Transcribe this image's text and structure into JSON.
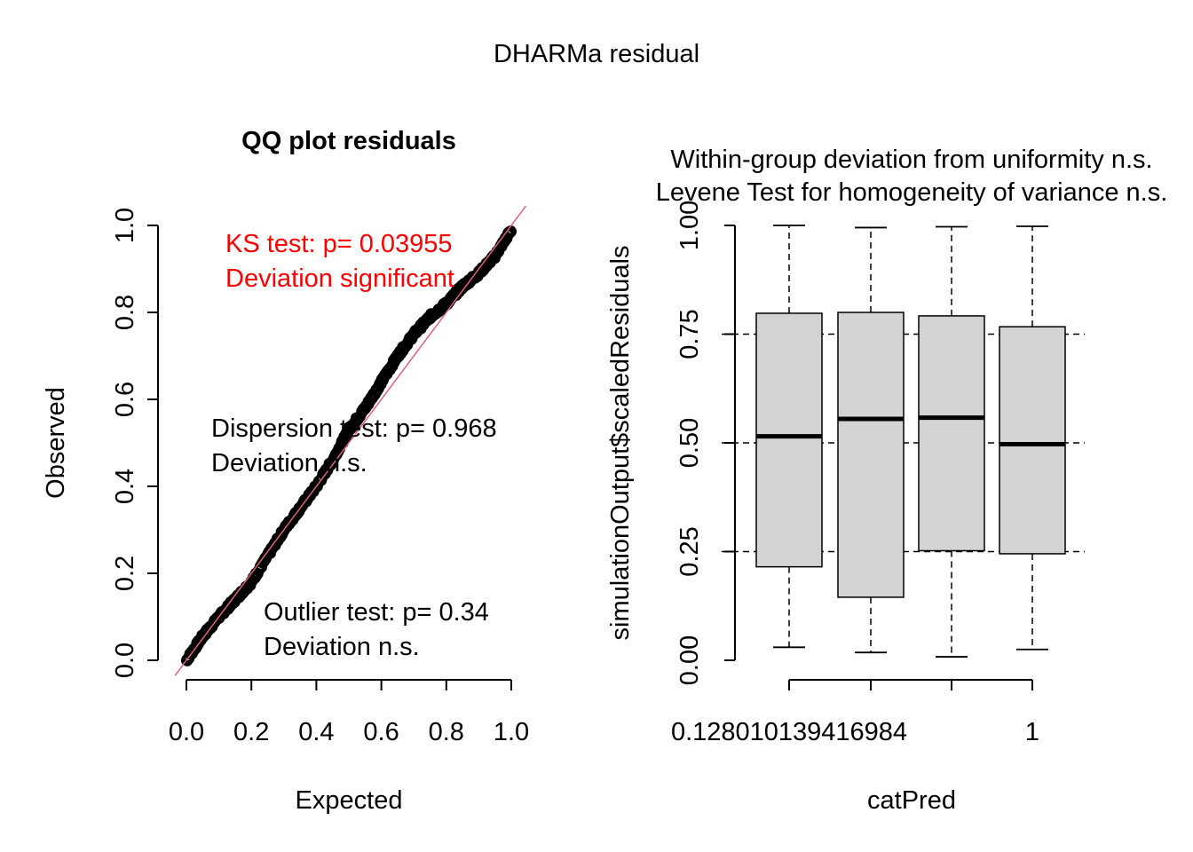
{
  "figure": {
    "title": "DHARMa residual"
  },
  "chart_data": [
    {
      "type": "scatter",
      "title": "QQ plot residuals",
      "xlabel": "Expected",
      "ylabel": "Observed",
      "xlim": [
        0,
        1
      ],
      "ylim": [
        0,
        1
      ],
      "x_ticks": [
        "0.0",
        "0.2",
        "0.4",
        "0.6",
        "0.8",
        "1.0"
      ],
      "y_ticks": [
        "0.0",
        "0.2",
        "0.4",
        "0.6",
        "0.8",
        "1.0"
      ],
      "reference_line": {
        "from": [
          0,
          0
        ],
        "to": [
          1,
          1
        ],
        "color": "#e0607a"
      },
      "point_color": "#000000",
      "qq_curve": [
        [
          0.0,
          0.0
        ],
        [
          0.05,
          0.055
        ],
        [
          0.1,
          0.1
        ],
        [
          0.15,
          0.14
        ],
        [
          0.2,
          0.18
        ],
        [
          0.25,
          0.24
        ],
        [
          0.3,
          0.3
        ],
        [
          0.35,
          0.35
        ],
        [
          0.4,
          0.4
        ],
        [
          0.45,
          0.46
        ],
        [
          0.5,
          0.53
        ],
        [
          0.55,
          0.58
        ],
        [
          0.6,
          0.64
        ],
        [
          0.65,
          0.7
        ],
        [
          0.7,
          0.75
        ],
        [
          0.75,
          0.79
        ],
        [
          0.8,
          0.82
        ],
        [
          0.85,
          0.86
        ],
        [
          0.9,
          0.89
        ],
        [
          0.95,
          0.93
        ],
        [
          1.0,
          0.99
        ]
      ],
      "annotations": {
        "ks": {
          "line1": "KS test: p= 0.03955",
          "line2": "Deviation  significant",
          "color": "#ff0000"
        },
        "dispersion": {
          "line1": "Dispersion test: p= 0.968",
          "line2": "Deviation  n.s."
        },
        "outlier": {
          "line1": "Outlier test: p= 0.34",
          "line2": "Deviation  n.s."
        }
      }
    },
    {
      "type": "boxplot",
      "title_line1": "Within-group deviation from uniformity n.s.",
      "title_line2": "Levene Test for homogeneity of variance n.s.",
      "xlabel": "catPred",
      "ylabel": "simulationOutput$scaledResiduals",
      "ylim": [
        0,
        1
      ],
      "y_ticks": [
        "0.00",
        "0.25",
        "0.50",
        "0.75",
        "1.00"
      ],
      "x_tick_labels": [
        "0.128010139416984",
        "",
        "",
        "1"
      ],
      "reference_lines": [
        0.25,
        0.5,
        0.75
      ],
      "box_fill": "#d3d3d3",
      "boxes": [
        {
          "min": 0.03,
          "q1": 0.215,
          "median": 0.515,
          "q3": 0.798,
          "max": 1.0
        },
        {
          "min": 0.018,
          "q1": 0.145,
          "median": 0.555,
          "q3": 0.8,
          "max": 0.995
        },
        {
          "min": 0.008,
          "q1": 0.252,
          "median": 0.558,
          "q3": 0.792,
          "max": 0.997
        },
        {
          "min": 0.025,
          "q1": 0.245,
          "median": 0.497,
          "q3": 0.767,
          "max": 0.998
        }
      ]
    }
  ]
}
